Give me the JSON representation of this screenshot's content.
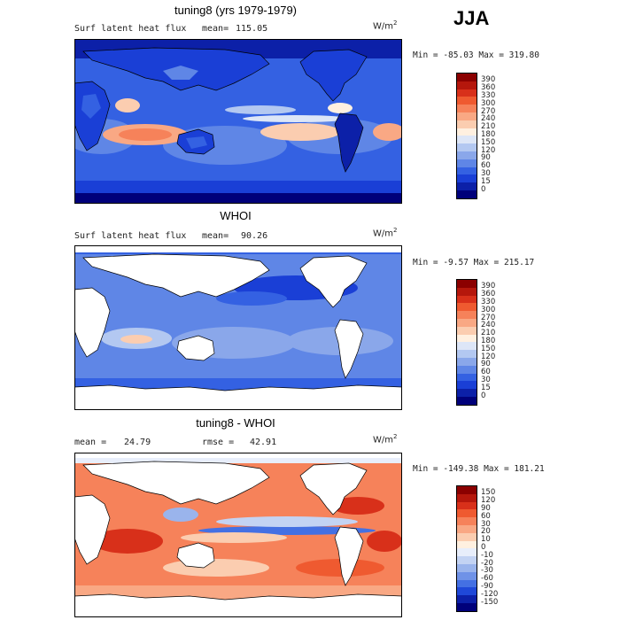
{
  "season": "JJA",
  "panels": [
    {
      "title": "tuning8 (yrs 1979-1979)",
      "left_label": "Surf latent heat flux",
      "stat_label": "mean=",
      "stat_value": "115.05",
      "units": "W/m",
      "units_sup": "2",
      "min_max": "Min = -85.03 Max = 319.80",
      "colorbar_labels": [
        "390",
        "360",
        "330",
        "300",
        "270",
        "240",
        "210",
        "180",
        "150",
        "120",
        "90",
        "60",
        "30",
        "15",
        "0"
      ],
      "colorbar_colors": [
        "#8b0000",
        "#b5170c",
        "#d8301a",
        "#ef5a30",
        "#f6825a",
        "#f9a884",
        "#fbcdb0",
        "#fff0e0",
        "#dde6f7",
        "#b3c8f1",
        "#8aa7ea",
        "#5f86e6",
        "#3461e2",
        "#1a3fd6",
        "#0c20a8",
        "#00007a"
      ]
    },
    {
      "title": "WHOI",
      "left_label": "Surf latent heat flux",
      "stat_label": "mean=",
      "stat_value": "90.26",
      "units": "W/m",
      "units_sup": "2",
      "min_max": "Min = -9.57 Max = 215.17",
      "colorbar_labels": [
        "390",
        "360",
        "330",
        "300",
        "270",
        "240",
        "210",
        "180",
        "150",
        "120",
        "90",
        "60",
        "30",
        "15",
        "0"
      ],
      "colorbar_colors": [
        "#8b0000",
        "#b5170c",
        "#d8301a",
        "#ef5a30",
        "#f6825a",
        "#f9a884",
        "#fbcdb0",
        "#fff0e0",
        "#dde6f7",
        "#b3c8f1",
        "#8aa7ea",
        "#5f86e6",
        "#3461e2",
        "#1a3fd6",
        "#0c20a8",
        "#00007a"
      ]
    },
    {
      "title": "tuning8 - WHOI",
      "left_label": "mean =",
      "left_value": "24.79",
      "stat_label": "rmse =",
      "stat_value": "42.91",
      "units": "W/m",
      "units_sup": "2",
      "min_max": "Min = -149.38 Max = 181.21",
      "colorbar_labels": [
        "150",
        "120",
        "90",
        "60",
        "30",
        "20",
        "10",
        "0",
        "-10",
        "-20",
        "-30",
        "-60",
        "-90",
        "-120",
        "-150"
      ],
      "colorbar_colors": [
        "#8b0000",
        "#b5170c",
        "#d8301a",
        "#ef5a30",
        "#f6825a",
        "#f9a884",
        "#fbcdb0",
        "#fff0e0",
        "#e8eefb",
        "#c3d3f3",
        "#9ab4ec",
        "#6f92e7",
        "#4470e3",
        "#1f48d8",
        "#0c20a8",
        "#00007a"
      ]
    }
  ],
  "chart_data": [
    {
      "type": "heatmap",
      "title": "tuning8 (yrs 1979-1979)",
      "field": "Surf latent heat flux",
      "units": "W/m2",
      "mean": 115.05,
      "min": -85.03,
      "max": 319.8,
      "contour_levels": [
        0,
        15,
        30,
        60,
        90,
        120,
        150,
        180,
        210,
        240,
        270,
        300,
        330,
        360,
        390
      ]
    },
    {
      "type": "heatmap",
      "title": "WHOI",
      "field": "Surf latent heat flux",
      "units": "W/m2",
      "mean": 90.26,
      "min": -9.57,
      "max": 215.17,
      "contour_levels": [
        0,
        15,
        30,
        60,
        90,
        120,
        150,
        180,
        210,
        240,
        270,
        300,
        330,
        360,
        390
      ]
    },
    {
      "type": "heatmap",
      "title": "tuning8 - WHOI",
      "units": "W/m2",
      "mean": 24.79,
      "rmse": 42.91,
      "min": -149.38,
      "max": 181.21,
      "contour_levels": [
        -150,
        -120,
        -90,
        -60,
        -30,
        -20,
        -10,
        0,
        10,
        20,
        30,
        60,
        90,
        120,
        150
      ]
    }
  ]
}
